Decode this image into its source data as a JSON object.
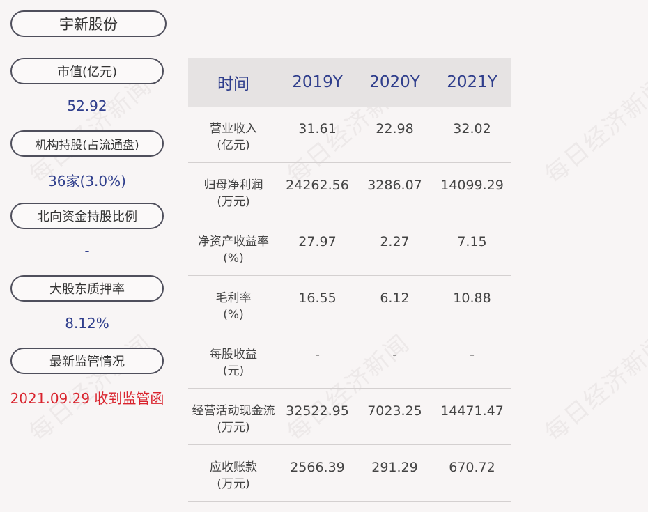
{
  "company": "宇新股份",
  "sidebar": [
    {
      "label": "市值(亿元)",
      "value": "52.92"
    },
    {
      "label": "机构持股(占流通盘)",
      "value": "36家(3.0%)"
    },
    {
      "label": "北向资金持股比例",
      "value": "-"
    },
    {
      "label": "大股东质押率",
      "value": "8.12%"
    },
    {
      "label": "最新监管情况",
      "value": "2021.09.29 收到监管函"
    }
  ],
  "table": {
    "header": {
      "time": "时间",
      "years": [
        "2019Y",
        "2020Y",
        "2021Y"
      ]
    },
    "rows": [
      {
        "metric": "营业收入",
        "unit": "(亿元)",
        "values": [
          "31.61",
          "22.98",
          "32.02"
        ]
      },
      {
        "metric": "归母净利润",
        "unit": "(万元)",
        "values": [
          "24262.56",
          "3286.07",
          "14099.29"
        ]
      },
      {
        "metric": "净资产收益率",
        "unit": "(%)",
        "values": [
          "27.97",
          "2.27",
          "7.15"
        ]
      },
      {
        "metric": "毛利率",
        "unit": "(%)",
        "values": [
          "16.55",
          "6.12",
          "10.88"
        ]
      },
      {
        "metric": "每股收益",
        "unit": "(元)",
        "values": [
          "-",
          "-",
          "-"
        ]
      },
      {
        "metric": "经营活动现金流",
        "unit": "(万元)",
        "values": [
          "32522.95",
          "7023.25",
          "14471.47"
        ]
      },
      {
        "metric": "应收账款",
        "unit": "(万元)",
        "values": [
          "2566.39",
          "291.29",
          "670.72"
        ]
      }
    ]
  },
  "watermark": "每日经济新闻",
  "colors": {
    "value_blue": "#2f3e8c",
    "alert_red": "#d9232d"
  }
}
